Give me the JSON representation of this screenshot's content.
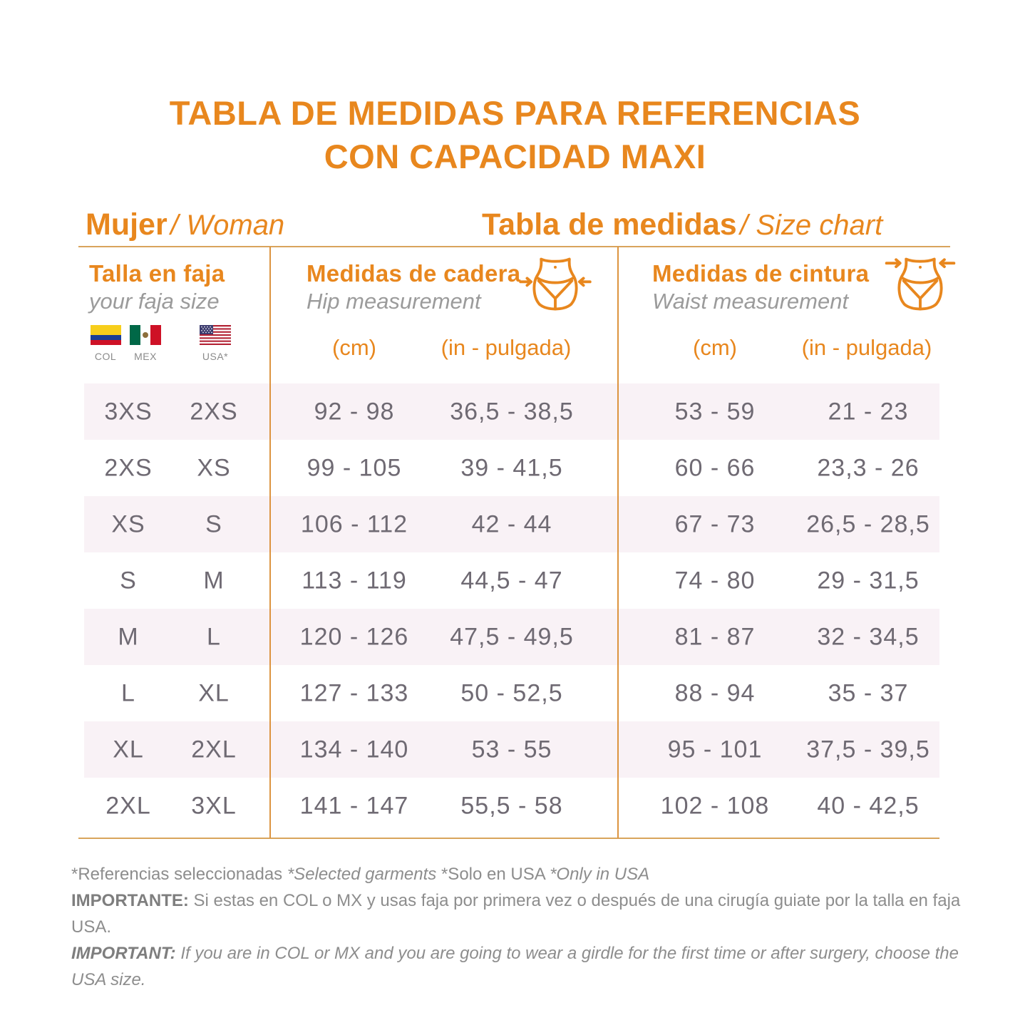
{
  "title": {
    "line1": "TABLA DE MEDIDAS PARA REFERENCIAS",
    "line2": "CON CAPACIDAD MAXI"
  },
  "section_headers": {
    "left": {
      "main": "Mujer",
      "sub": "/ Woman"
    },
    "right": {
      "main": "Tabla de medidas",
      "sub": "/ Size chart"
    }
  },
  "columns": {
    "size": {
      "title": "Talla en faja",
      "subtitle": "your faja size",
      "flags": [
        {
          "code": "COL"
        },
        {
          "code": "MEX"
        },
        {
          "code": "USA*"
        }
      ]
    },
    "hip": {
      "title": "Medidas de cadera",
      "subtitle": "Hip measurement",
      "unit_cm": "(cm)",
      "unit_in": "(in - pulgada)"
    },
    "waist": {
      "title": "Medidas de cintura",
      "subtitle": "Waist measurement",
      "unit_cm": "(cm)",
      "unit_in": "(in - pulgada)"
    }
  },
  "table": {
    "rows": [
      [
        "3XS",
        "2XS",
        "92 - 98",
        "36,5 - 38,5",
        "53 - 59",
        "21 - 23"
      ],
      [
        "2XS",
        "XS",
        "99 - 105",
        "39 - 41,5",
        "60 - 66",
        "23,3 - 26"
      ],
      [
        "XS",
        "S",
        "106 - 112",
        "42 - 44",
        "67 - 73",
        "26,5 - 28,5"
      ],
      [
        "S",
        "M",
        "113 - 119",
        "44,5 - 47",
        "74 - 80",
        "29 - 31,5"
      ],
      [
        "M",
        "L",
        "120 - 126",
        "47,5 - 49,5",
        "81 - 87",
        "32 - 34,5"
      ],
      [
        "L",
        "XL",
        "127 - 133",
        "50 - 52,5",
        "88 - 94",
        "35 - 37"
      ],
      [
        "XL",
        "2XL",
        "134 - 140",
        "53 - 55",
        "95 - 101",
        "37,5 - 39,5"
      ],
      [
        "2XL",
        "3XL",
        "141 - 147",
        "55,5 - 58",
        "102 - 108",
        "40 - 42,5"
      ]
    ]
  },
  "footer": {
    "note": {
      "part1": "*Referencias seleccionadas ",
      "part2": "*Selected garments ",
      "part3": "*Solo en USA ",
      "part4": "*Only in USA"
    },
    "important_es": {
      "label": "IMPORTANTE:",
      "text": " Si estas en COL o MX y usas faja por primera vez o después de una cirugía guiate por la talla en faja USA."
    },
    "important_en": {
      "label": "IMPORTANT:",
      "text": " If you are in COL or MX and you are going to wear a girdle for the first time or after surgery, choose the USA size."
    }
  },
  "colors": {
    "orange": "#E8871E",
    "rule": "#D9A45C",
    "divider": "#DC9440",
    "stripe": "#F9F2F6",
    "data-text": "#6F6A73",
    "muted": "#9B9B9B",
    "footer": "#8D8D8D"
  }
}
